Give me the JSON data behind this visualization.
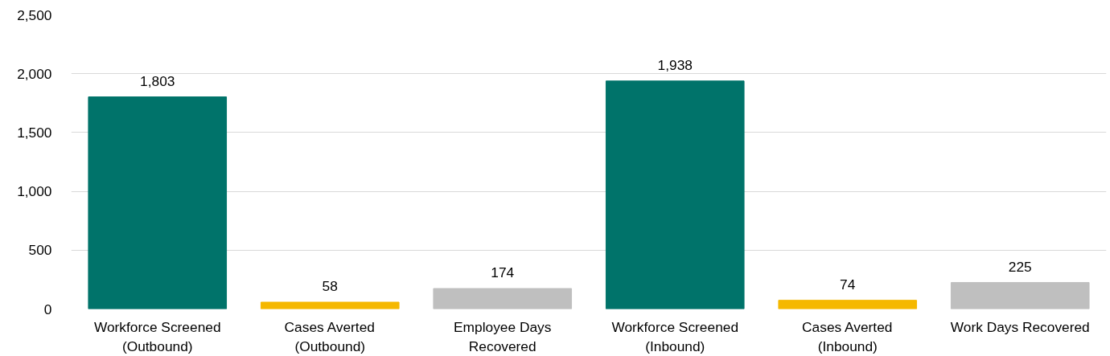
{
  "chart_data": {
    "type": "bar",
    "categories": [
      "Workforce Screened (Outbound)",
      "Cases Averted (Outbound)",
      "Employee Days Recovered",
      "Workforce Screened (Inbound)",
      "Cases Averted (Inbound)",
      "Work Days Recovered"
    ],
    "values": [
      1803,
      58,
      174,
      1938,
      74,
      225
    ],
    "colors": [
      "#00736a",
      "#f5b800",
      "#bfbfbf",
      "#00736a",
      "#f5b800",
      "#bfbfbf"
    ],
    "ylim": [
      0,
      2500
    ],
    "yticks": [
      {
        "value": 0,
        "label": "0"
      },
      {
        "value": 500,
        "label": "500"
      },
      {
        "value": 1000,
        "label": "1,000"
      },
      {
        "value": 1500,
        "label": "1,500"
      },
      {
        "value": 2000,
        "label": "2,000"
      },
      {
        "value": 2500,
        "label": "2,500"
      }
    ],
    "value_labels": [
      "1,803",
      "58",
      "174",
      "1,938",
      "74",
      "225"
    ],
    "grid": "y"
  }
}
